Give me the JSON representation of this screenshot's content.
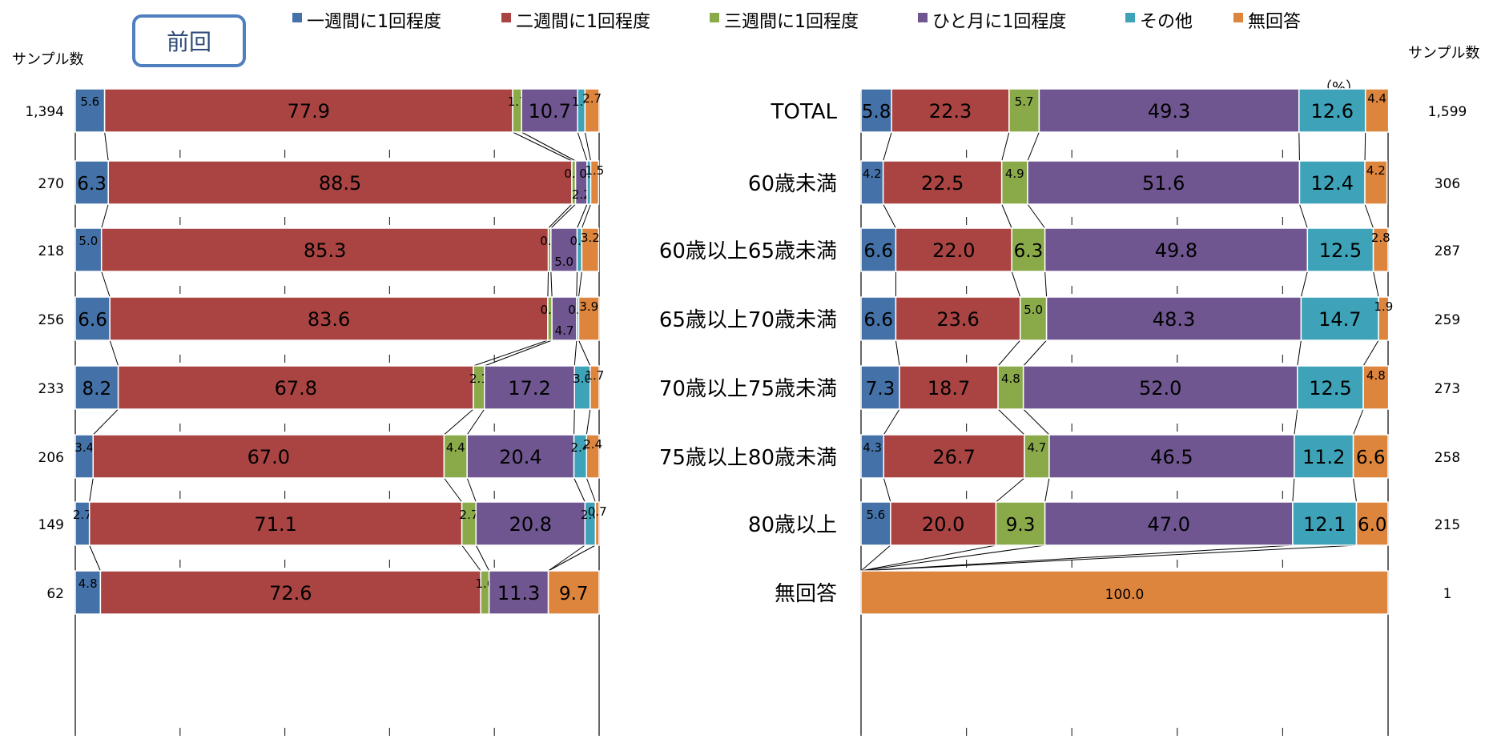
{
  "legend": {
    "items": [
      {
        "name": "一週間に1回程度",
        "color": "#4472a8"
      },
      {
        "name": "二週間に1回程度",
        "color": "#a94442"
      },
      {
        "name": "三週間に1回程度",
        "color": "#8aaa4a"
      },
      {
        "name": "ひと月に1回程度",
        "color": "#6f5690"
      },
      {
        "name": "その他",
        "color": "#3ea3b8"
      },
      {
        "name": "無回答",
        "color": "#de853d"
      }
    ]
  },
  "previous_badge": "前回",
  "sample_header_left": "サンプル数",
  "sample_header_right": "サンプル数",
  "unit_label": "（%）",
  "chart_data": [
    {
      "type": "bar",
      "orientation": "horizontal-stacked-100",
      "panel": "left",
      "badge": "前回",
      "series_names": [
        "一週間に1回程度",
        "二週間に1回程度",
        "三週間に1回程度",
        "ひと月に1回程度",
        "その他",
        "無回答"
      ],
      "rows": [
        {
          "n": "1,394",
          "values": [
            5.6,
            77.9,
            1.7,
            10.7,
            1.4,
            2.7
          ]
        },
        {
          "n": "270",
          "values": [
            6.3,
            88.5,
            0.7,
            2.2,
            0.7,
            1.5
          ]
        },
        {
          "n": "218",
          "values": [
            5.0,
            85.3,
            0.5,
            5.0,
            0.9,
            3.2
          ]
        },
        {
          "n": "256",
          "values": [
            6.6,
            83.6,
            0.8,
            4.7,
            0.4,
            3.9
          ]
        },
        {
          "n": "233",
          "values": [
            8.2,
            67.8,
            2.1,
            17.2,
            3.0,
            1.7
          ]
        },
        {
          "n": "206",
          "values": [
            3.4,
            67.0,
            4.4,
            20.4,
            2.4,
            2.4
          ]
        },
        {
          "n": "149",
          "values": [
            2.7,
            71.1,
            2.7,
            20.8,
            2.0,
            0.7
          ]
        },
        {
          "n": "62",
          "values": [
            4.8,
            72.6,
            1.6,
            11.3,
            0.0,
            9.7
          ]
        }
      ]
    },
    {
      "type": "bar",
      "orientation": "horizontal-stacked-100",
      "panel": "right",
      "unit": "（%）",
      "series_names": [
        "一週間に1回程度",
        "二週間に1回程度",
        "三週間に1回程度",
        "ひと月に1回程度",
        "その他",
        "無回答"
      ],
      "rows": [
        {
          "category": "TOTAL",
          "n": "1,599",
          "values": [
            5.8,
            22.3,
            5.7,
            49.3,
            12.6,
            4.4
          ]
        },
        {
          "category": "60歳未満",
          "n": "306",
          "values": [
            4.2,
            22.5,
            4.9,
            51.6,
            12.4,
            4.2
          ]
        },
        {
          "category": "60歳以上65歳未満",
          "n": "287",
          "values": [
            6.6,
            22.0,
            6.3,
            49.8,
            12.5,
            2.8
          ]
        },
        {
          "category": "65歳以上70歳未満",
          "n": "259",
          "values": [
            6.6,
            23.6,
            5.0,
            48.3,
            14.7,
            1.9
          ]
        },
        {
          "category": "70歳以上75歳未満",
          "n": "273",
          "values": [
            7.3,
            18.7,
            4.8,
            52.0,
            12.5,
            4.8
          ]
        },
        {
          "category": "75歳以上80歳未満",
          "n": "258",
          "values": [
            4.3,
            26.7,
            4.7,
            46.5,
            11.2,
            6.6
          ]
        },
        {
          "category": "80歳以上",
          "n": "215",
          "values": [
            5.6,
            20.0,
            9.3,
            47.0,
            12.1,
            6.0
          ]
        },
        {
          "category": "無回答",
          "n": "1",
          "values": [
            0.0,
            0.0,
            0.0,
            0.0,
            0.0,
            100.0
          ]
        }
      ]
    }
  ]
}
